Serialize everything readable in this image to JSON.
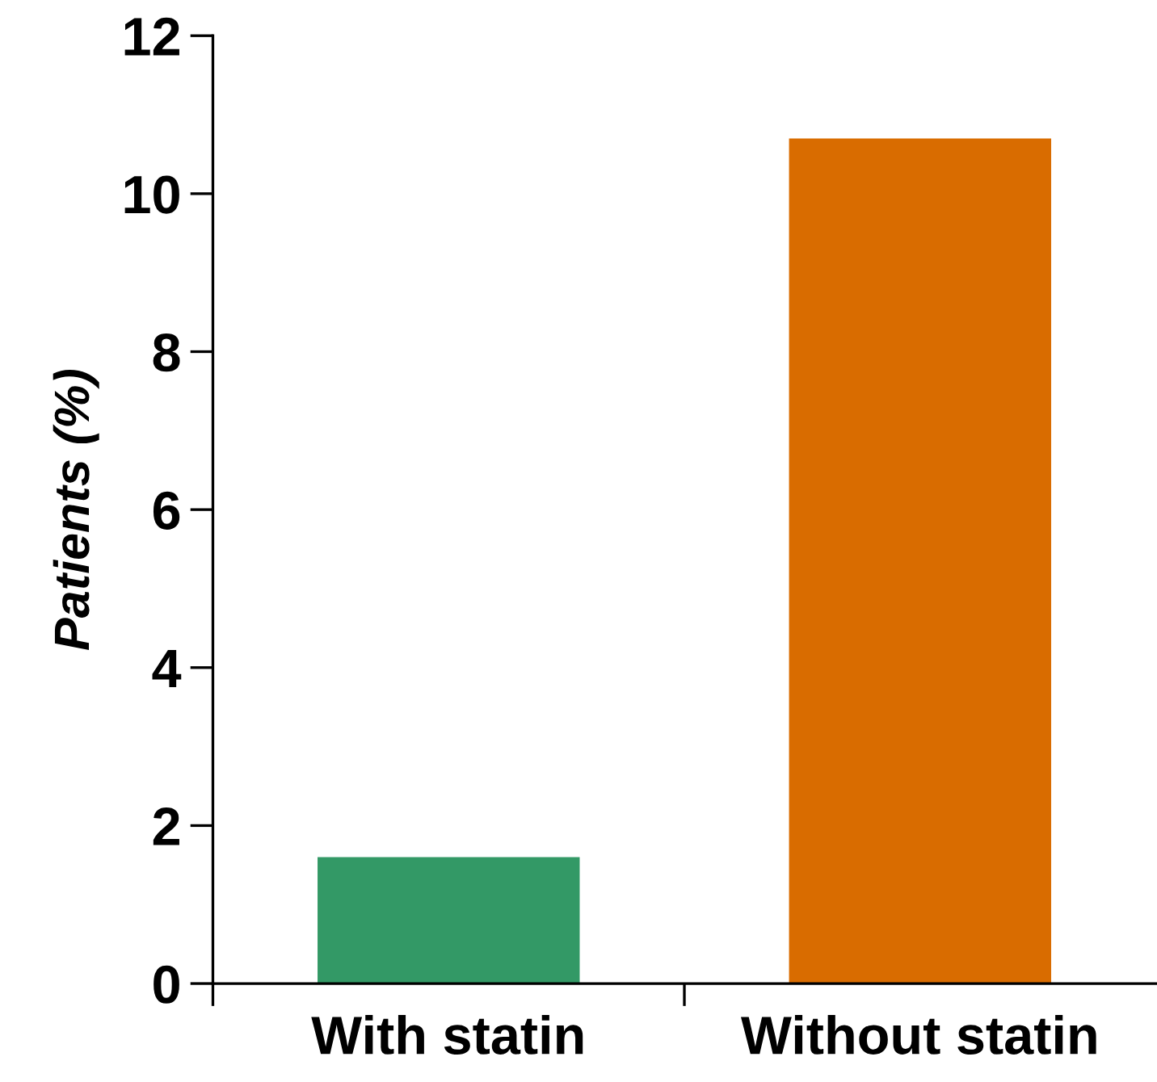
{
  "chart_data": {
    "type": "bar",
    "ylabel": "Patients (%)",
    "categories": [
      "With statin",
      "Without statin"
    ],
    "values": [
      1.6,
      10.7
    ],
    "colors": [
      "#339966",
      "#d96c00"
    ],
    "ylim": [
      0,
      12
    ],
    "yticks": [
      0,
      2,
      4,
      6,
      8,
      10,
      12
    ],
    "grid": false,
    "legend": false
  }
}
